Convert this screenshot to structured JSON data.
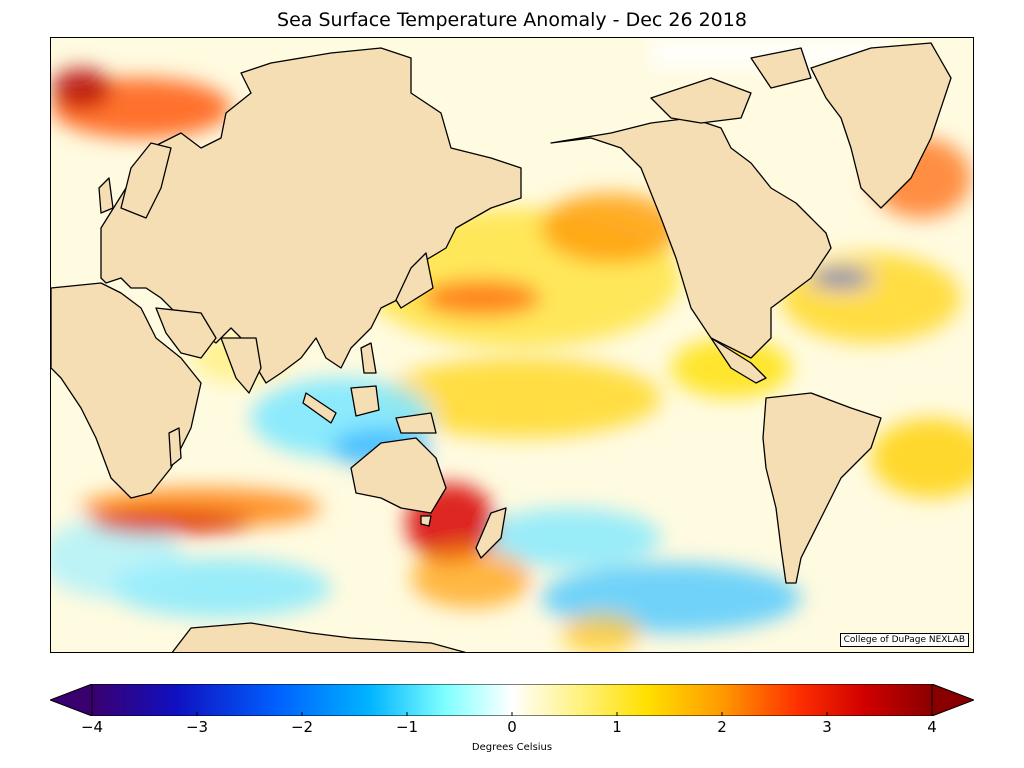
{
  "title": "Sea Surface Temperature Anomaly - Dec 26 2018",
  "credit": "College of DuPage NEXLAB",
  "colorbar": {
    "label": "Degrees Celsius",
    "min": -4,
    "max": 4,
    "ticks": [
      "−4",
      "−3",
      "−2",
      "−1",
      "0",
      "1",
      "2",
      "3",
      "4"
    ],
    "colors": [
      "#3a0070",
      "#1010c0",
      "#0060ff",
      "#00b4ff",
      "#7fffff",
      "#ffffff",
      "#fff280",
      "#ffe000",
      "#ff9a00",
      "#ff3000",
      "#d00000",
      "#8a0000"
    ]
  },
  "map": {
    "land_color": "#f5deb3",
    "ocean_base": "#fffbe0"
  }
}
